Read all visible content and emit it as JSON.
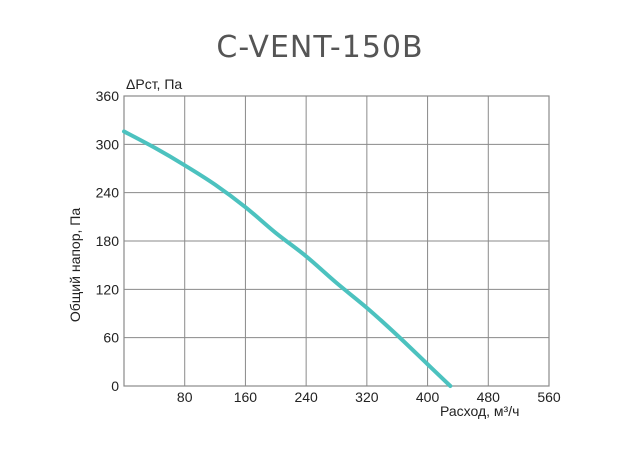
{
  "chart_data": {
    "type": "line",
    "title": "C-VENT-150B",
    "ylabel": "Общий напор, Па",
    "y_unit_label": "ΔPст, Па",
    "xlabel": "Расход, м³/ч",
    "xlim": [
      0,
      560
    ],
    "ylim": [
      0,
      360
    ],
    "x_ticks": [
      80,
      160,
      240,
      320,
      400,
      480,
      560
    ],
    "y_ticks": [
      0,
      60,
      120,
      180,
      240,
      300,
      360
    ],
    "grid": true,
    "series": [
      {
        "color": "#4cc2bf",
        "points": [
          [
            0,
            316
          ],
          [
            40,
            296
          ],
          [
            80,
            274
          ],
          [
            120,
            250
          ],
          [
            160,
            222
          ],
          [
            200,
            190
          ],
          [
            240,
            161
          ],
          [
            280,
            128
          ],
          [
            320,
            97
          ],
          [
            360,
            63
          ],
          [
            400,
            27
          ],
          [
            430,
            0
          ]
        ]
      }
    ]
  }
}
